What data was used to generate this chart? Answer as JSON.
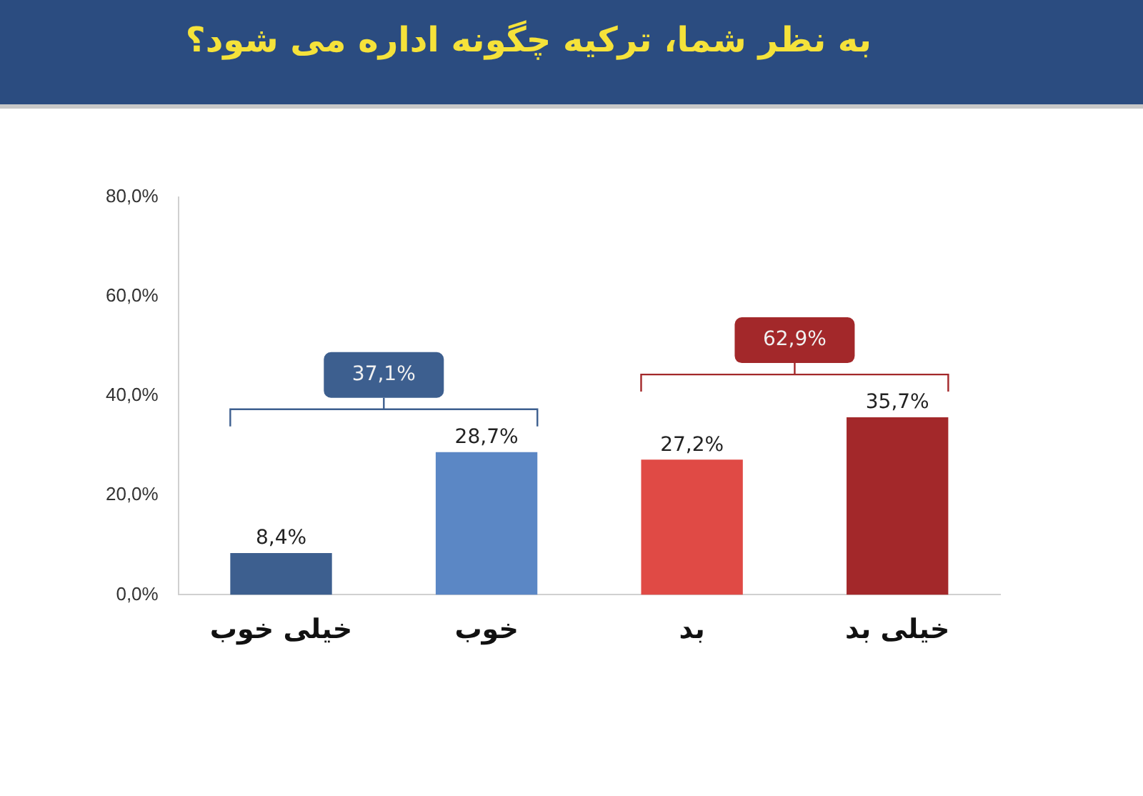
{
  "chart_data": {
    "type": "bar",
    "title": "به نظر شما، ترکیه چگونه اداره می شود؟",
    "categories": [
      "خیلی خوب",
      "خوب",
      "بد",
      "خیلی بد"
    ],
    "values": [
      8.4,
      28.7,
      27.2,
      35.7
    ],
    "colors": [
      "#3d5f8f",
      "#5b87c5",
      "#e04a45",
      "#a3282a"
    ],
    "value_labels": [
      "8,4%",
      "28,7%",
      "27,2%",
      "35,7%"
    ],
    "ylim": [
      0,
      80
    ],
    "yticks": [
      {
        "value": 0,
        "label": "0,0%"
      },
      {
        "value": 20,
        "label": "20,0%"
      },
      {
        "value": 40,
        "label": "40,0%"
      },
      {
        "value": 60,
        "label": "60,0%"
      },
      {
        "value": 80,
        "label": "80,0%"
      }
    ],
    "annotations": [
      "37,1%",
      "62,9%"
    ],
    "grid": false,
    "legend": false
  }
}
